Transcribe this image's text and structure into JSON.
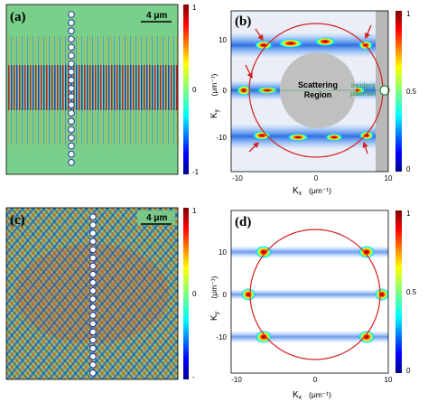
{
  "panels": {
    "a": {
      "label": "(a)",
      "scale_bar": "4 μm",
      "colorbar": {
        "ticks": [
          "1",
          "0",
          "-1"
        ]
      }
    },
    "b": {
      "label": "(b)",
      "region_label_1": "Scattering",
      "region_label_2": "Region",
      "incident_label_1": "Incident",
      "incident_label_2": "plasmon",
      "colorbar": {
        "ticks": [
          "1",
          "0.5",
          "0"
        ]
      }
    },
    "c": {
      "label": "(c)",
      "scale_bar": "4 μm",
      "colorbar": {
        "ticks": [
          "1",
          "0",
          "-"
        ]
      }
    },
    "d": {
      "label": "(d)",
      "colorbar": {
        "ticks": [
          "1",
          "0.5",
          "0"
        ]
      }
    }
  },
  "axes": {
    "ky_main": "K",
    "ky_sub": "y",
    "ky_unit": "(μm⁻¹)",
    "kx_main": "K",
    "kx_sub": "x",
    "kx_unit": "(μm⁻¹)",
    "y_ticks": [
      "10",
      "0",
      "-10"
    ],
    "x_ticks": [
      "-10",
      "0",
      "10"
    ]
  },
  "colors": {
    "circle": "#d42020",
    "arrow": "#d42020",
    "incident": "#1f9a3a",
    "field_bg": "#7ad08a"
  },
  "jet": [
    "#00008f",
    "#0000ff",
    "#0080ff",
    "#00ffff",
    "#80ff80",
    "#ffff00",
    "#ff8000",
    "#ff0000",
    "#800000"
  ]
}
